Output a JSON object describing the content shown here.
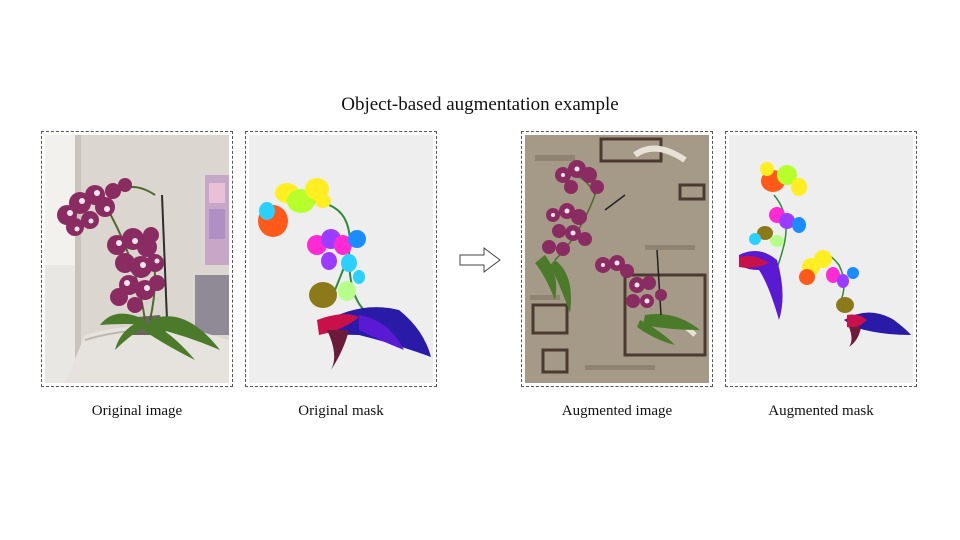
{
  "figure": {
    "title": "Object-based augmentation example",
    "panels": [
      {
        "id": "original-image",
        "caption": "Original image"
      },
      {
        "id": "original-mask",
        "caption": "Original mask"
      },
      {
        "id": "augmented-image",
        "caption": "Augmented image"
      },
      {
        "id": "augmented-mask",
        "caption": "Augmented mask"
      }
    ]
  },
  "colors": {
    "orchid_petal": "#8a2b62",
    "orchid_spot": "#f2e6ee",
    "leaf": "#4a7a2a",
    "mask_background": "#eeeeee",
    "carpet": "#a59a88",
    "wall": "#dcd6d0",
    "stem_mask": "#2e8b3a"
  },
  "mask_palette": [
    "#ff5a1a",
    "#ffee22",
    "#b6ff2a",
    "#2ad0ff",
    "#ff2ad4",
    "#9b3cff",
    "#1a8cff",
    "#8c7a1a",
    "#b8ff8a",
    "#5a1ad4",
    "#2a1aa8",
    "#c8104a",
    "#6b1a3a"
  ]
}
